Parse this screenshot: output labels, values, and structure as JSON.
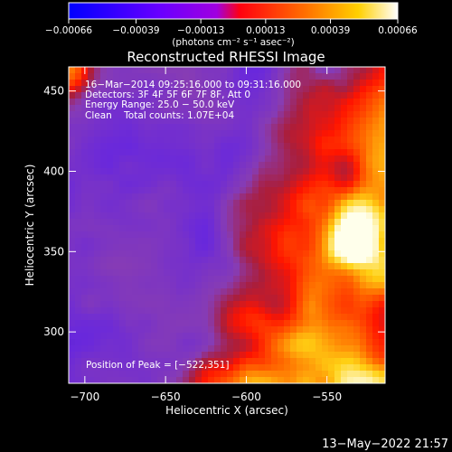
{
  "chart_data": {
    "type": "heatmap",
    "title": "Reconstructed RHESSI Image",
    "xlabel": "Heliocentric X (arcsec)",
    "ylabel": "Heliocentric Y (arcsec)",
    "xlim": [
      -710,
      -514
    ],
    "ylim": [
      268,
      465
    ],
    "xticks": [
      -700,
      -650,
      -600,
      -550
    ],
    "xtick_labels": [
      "−700",
      "−650",
      "−600",
      "−550"
    ],
    "yticks": [
      300,
      350,
      400,
      450
    ],
    "ytick_labels": [
      "300",
      "350",
      "400",
      "450"
    ],
    "colorbar": {
      "min": -0.00066,
      "max": 0.00066,
      "ticks": [
        -0.00066,
        -0.00039,
        -0.00013,
        0.00013,
        0.00039,
        0.00066
      ],
      "tick_labels": [
        "−0.00066",
        "−0.00039",
        "−0.00013",
        "0.00013",
        "0.00039",
        "0.00066"
      ],
      "unit_label": "(photons cm⁻² s⁻¹ asec⁻²)",
      "colors": [
        "#0000ff",
        "#8a00ff",
        "#ff0000",
        "#ff9b00",
        "#ffffff"
      ]
    },
    "annotations": {
      "time": "16−Mar−2014 09:25:16.000 to 09:31:16.000",
      "detectors": "Detectors: 3F 4F 5F 6F 7F 8F, Att 0",
      "energy": "Energy Range: 25.0 − 50.0 keV",
      "clean": "Clean    Total counts: 1.07E+04",
      "peak": "Position of Peak = [−522,351]"
    },
    "peak": {
      "x": -522,
      "y": 351
    },
    "footer_date": "13−May−2022 21:57"
  }
}
